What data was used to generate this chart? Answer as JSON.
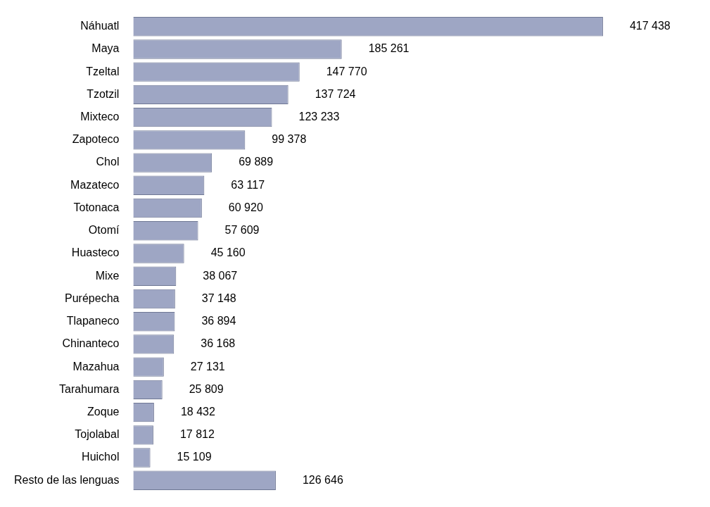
{
  "chart_data": {
    "type": "bar",
    "orientation": "horizontal",
    "tick_labels": "y",
    "legend": false,
    "categories": [
      "Náhuatl",
      "Maya",
      "Tzeltal",
      "Tzotzil",
      "Mixteco",
      "Zapoteco",
      "Chol",
      "Mazateco",
      "Totonaca",
      "Otomí",
      "Huasteco",
      "Mixe",
      "Purépecha",
      "Tlapaneco",
      "Chinanteco",
      "Mazahua",
      "Tarahumara",
      "Zoque",
      "Tojolabal",
      "Huichol",
      "Resto de las lenguas"
    ],
    "values": [
      417438,
      185261,
      147770,
      137724,
      123233,
      99378,
      69889,
      63117,
      60920,
      57609,
      45160,
      38067,
      37148,
      36894,
      36168,
      27131,
      25809,
      18432,
      17812,
      15109,
      126646
    ],
    "value_labels": [
      "417 438",
      "185 261",
      "147 770",
      "137 724",
      "123 233",
      "99 378",
      "69 889",
      "63 117",
      "60 920",
      "57 609",
      "45 160",
      "38 067",
      "37 148",
      "36 894",
      "36 168",
      "27 131",
      "25 809",
      "18 432",
      "17 812",
      "15 109",
      "126 646"
    ],
    "color": "#9ea6c4"
  }
}
